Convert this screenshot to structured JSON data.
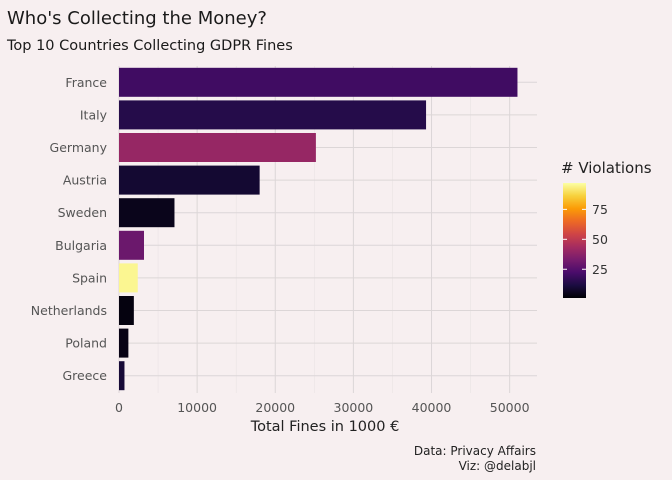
{
  "chart_data": {
    "type": "bar",
    "orientation": "horizontal",
    "title": "Who's Collecting the Money?",
    "subtitle": "Top 10 Countries Collecting GDPR Fines",
    "xlabel": "Total Fines in 1000 €",
    "ylabel": "",
    "xlim": [
      0,
      53500
    ],
    "x_ticks": [
      0,
      10000,
      20000,
      30000,
      40000,
      50000
    ],
    "grid": true,
    "categories": [
      "France",
      "Italy",
      "Germany",
      "Austria",
      "Sweden",
      "Bulgaria",
      "Spain",
      "Netherlands",
      "Poland",
      "Greece"
    ],
    "values": [
      51000,
      39300,
      25200,
      18000,
      7100,
      3200,
      2400,
      1900,
      1200,
      700
    ],
    "violations": [
      20,
      14,
      40,
      9,
      5,
      30,
      95,
      3,
      4,
      10
    ],
    "legend": {
      "title": "# Violations",
      "placement": "right",
      "min": 1,
      "max": 97,
      "ticks": [
        25,
        50,
        75
      ],
      "colormap": [
        "#000004",
        "#1b0c41",
        "#4a0c6b",
        "#781c6d",
        "#a52c60",
        "#cf4446",
        "#ed6925",
        "#fb9b06",
        "#f7d13d",
        "#fcffa4"
      ]
    },
    "caption": [
      "Data: Privacy Affairs",
      "Viz: @delabjl"
    ]
  }
}
